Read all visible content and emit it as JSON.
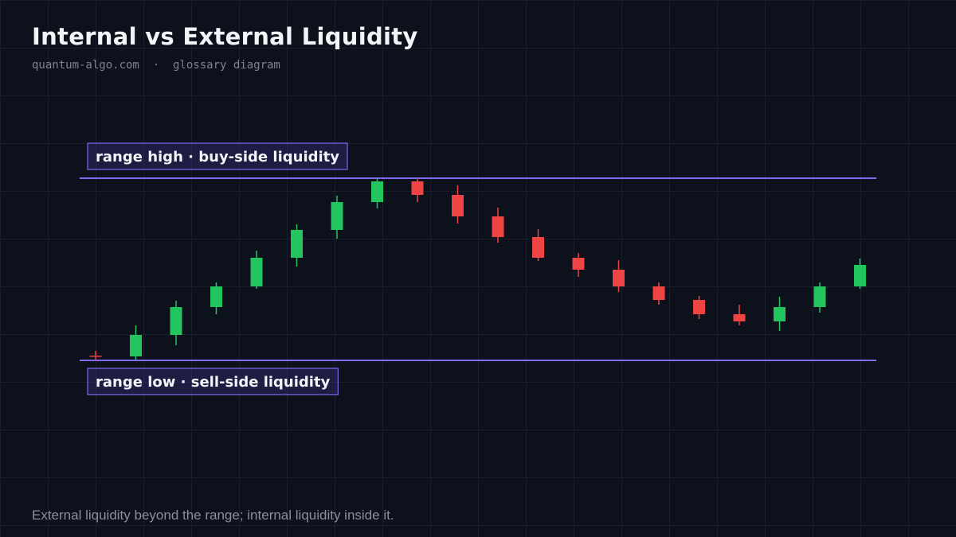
{
  "chart_data": {
    "type": "candlestick",
    "title": "Internal vs External Liquidity",
    "subtitle": "quantum-algo.com  ·  glossary diagram",
    "caption": "External liquidity beyond the range; internal liquidity inside it.",
    "categories": [
      null,
      null,
      null,
      null,
      null,
      null,
      null,
      null,
      null,
      null,
      null,
      null,
      null,
      null,
      null,
      null,
      null,
      null,
      null,
      null
    ],
    "open": [
      53,
      52,
      79,
      114,
      140,
      176,
      211,
      246,
      272,
      255,
      228,
      202,
      176,
      161,
      140,
      123,
      105,
      96,
      114,
      140
    ],
    "high": [
      59,
      91,
      122,
      145,
      185,
      218,
      254,
      276,
      276,
      267,
      239,
      212,
      182,
      173,
      145,
      128,
      117,
      127,
      145,
      175
    ],
    "low": [
      47,
      48,
      66,
      105,
      137,
      165,
      200,
      238,
      246,
      219,
      195,
      172,
      152,
      133,
      117,
      99,
      91,
      84,
      107,
      137
    ],
    "close": [
      52,
      79,
      114,
      140,
      176,
      211,
      246,
      272,
      255,
      228,
      202,
      176,
      161,
      140,
      123,
      105,
      96,
      114,
      140,
      167
    ],
    "up_color": "#22c55e",
    "down_color": "#ef4444",
    "level_color": "#7b6cf0",
    "levels": [
      {
        "label": "range high · buy-side liquidity",
        "value": 276,
        "label_side": "above"
      },
      {
        "label": "range low · sell-side liquidity",
        "value": 47,
        "label_side": "below"
      }
    ],
    "ylim": [
      0,
      400
    ]
  }
}
